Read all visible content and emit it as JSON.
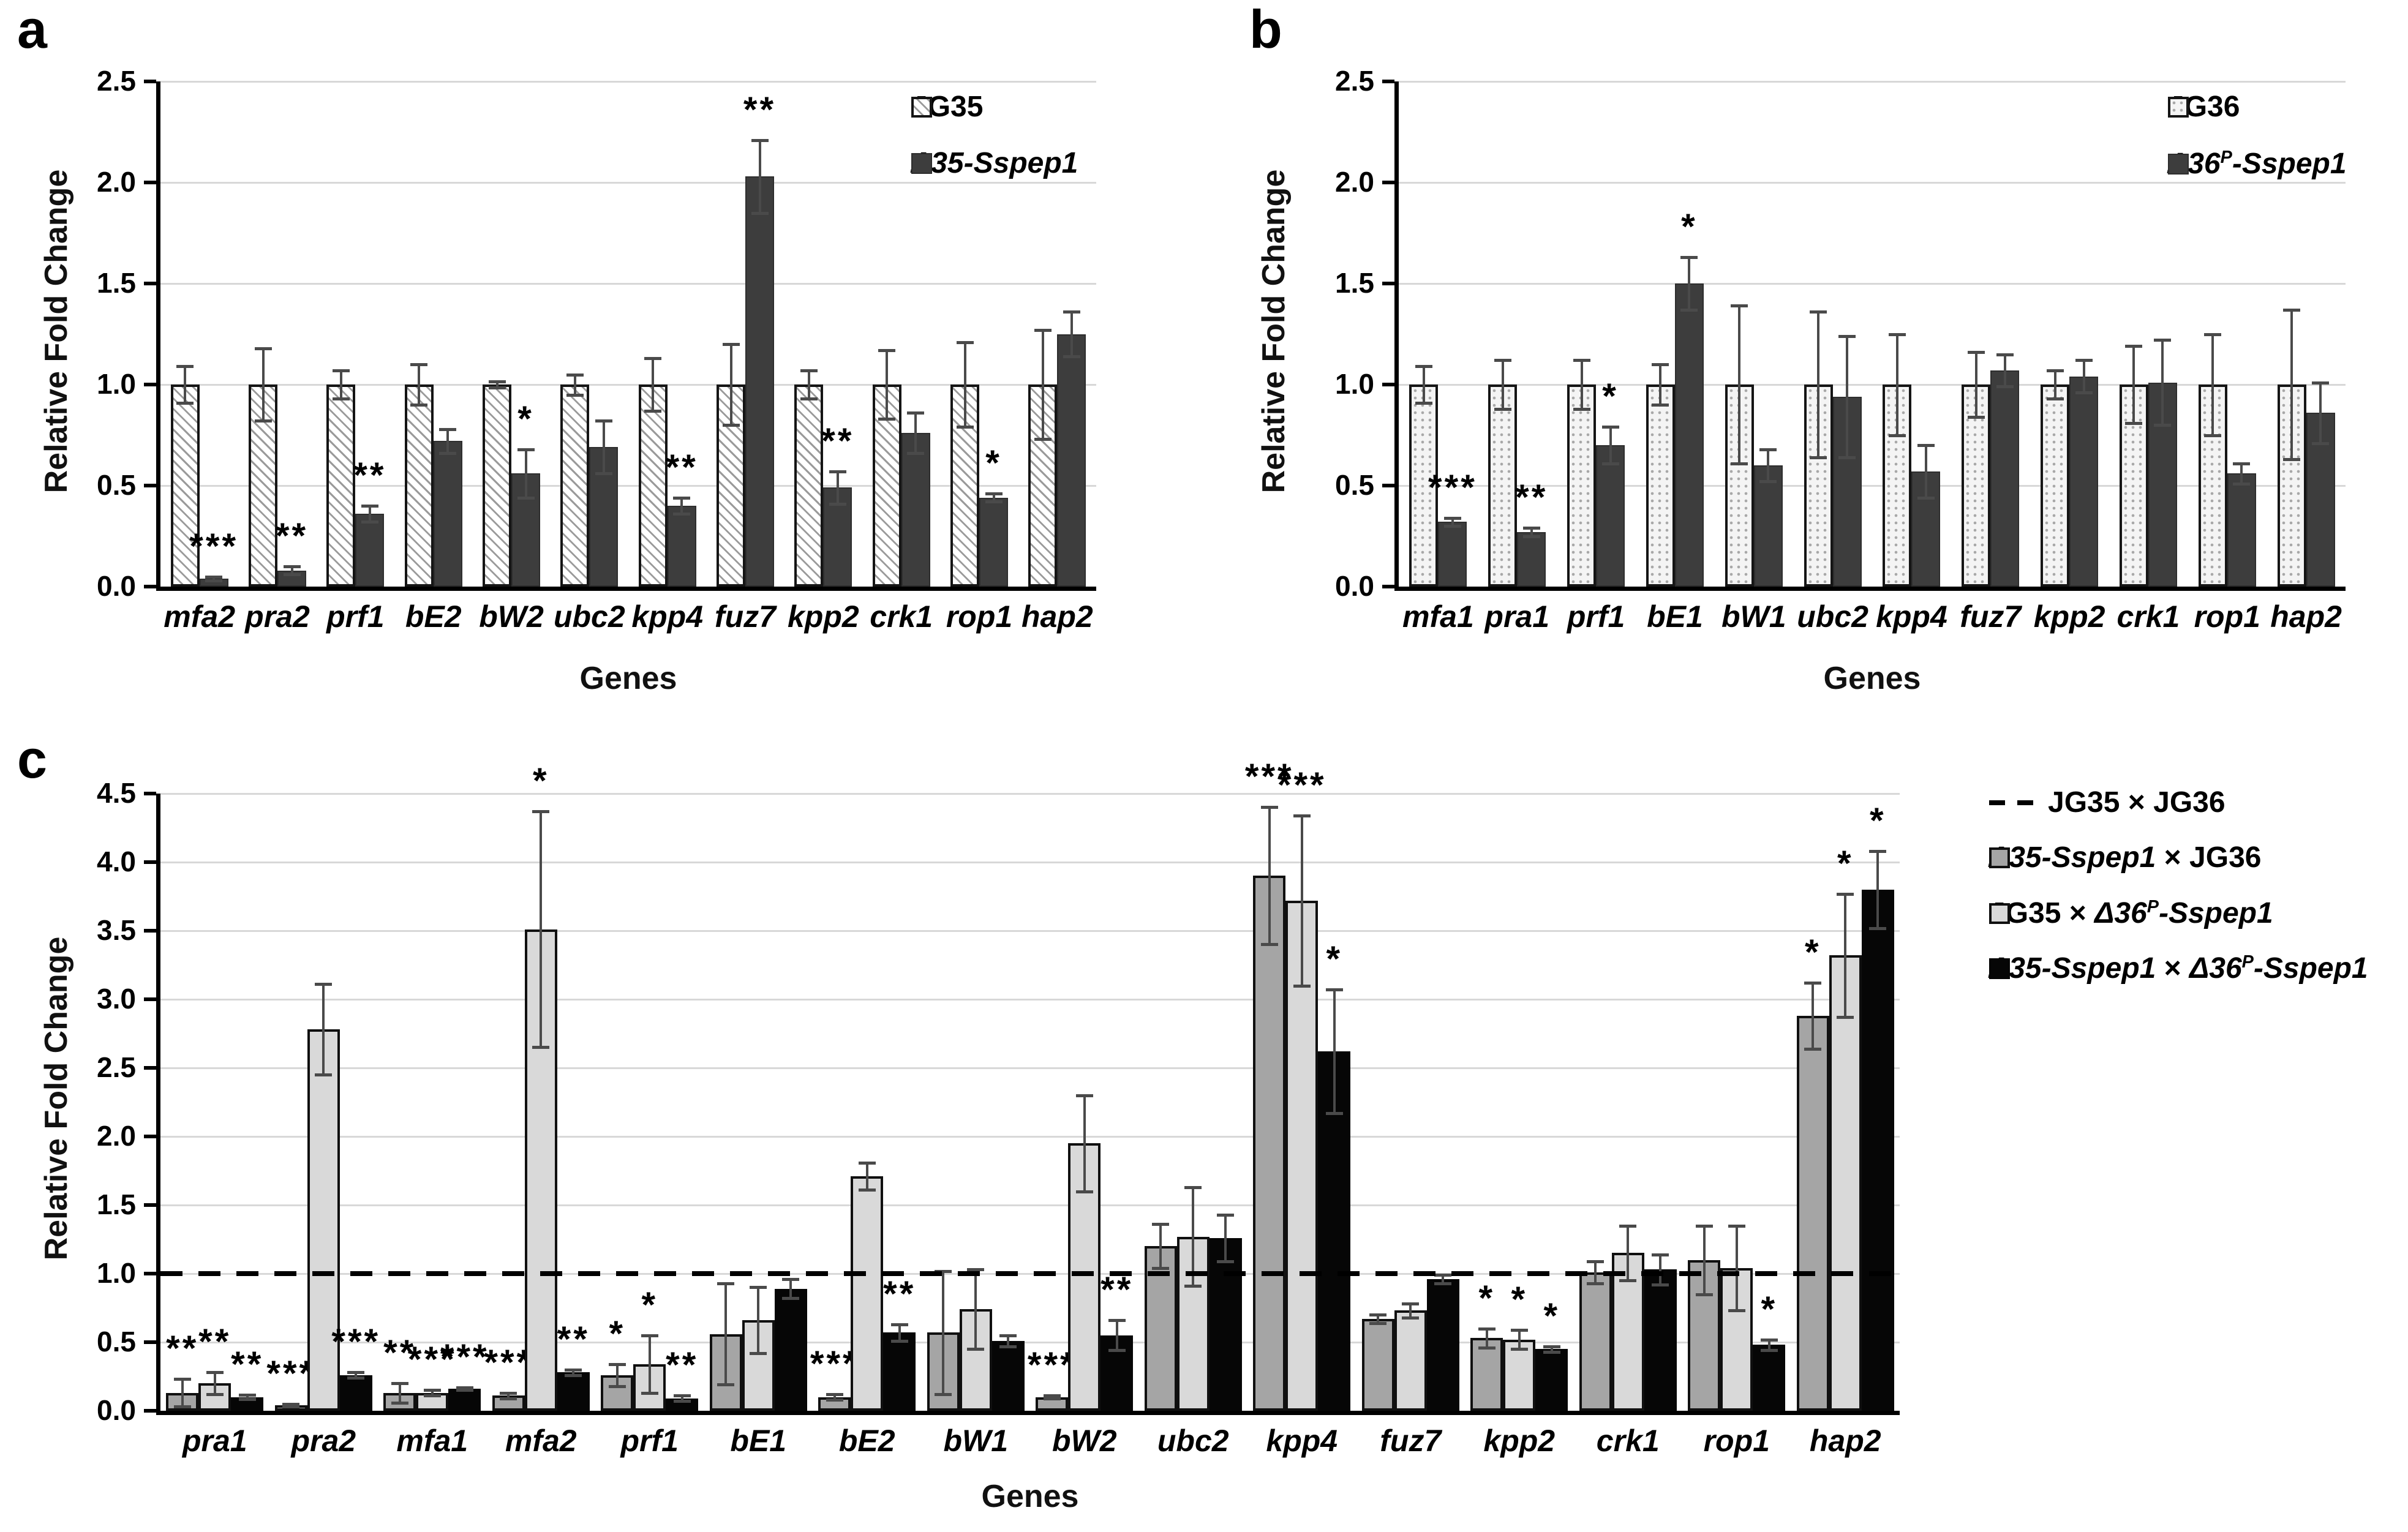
{
  "figure": {
    "background": "#ffffff",
    "colors": {
      "hatch_series_fill": "#ffffff",
      "hatch_series_line": "#9b9b9b",
      "dots_series_fill": "#f4f4f4",
      "dark_series": "#3d3d3d",
      "cross_gray_series": "#a5a5a5",
      "cross_light_series": "#d9d9d9",
      "cross_black_series": "#060606",
      "gridline": "#d8d8d8",
      "error_bar": "#4a4a4a",
      "baseline_dash": "#000000"
    }
  },
  "chart_data": [
    {
      "id": "a",
      "panel_label": "a",
      "type": "bar",
      "title": "",
      "ylabel": "Relative Fold Change",
      "xlabel": "Genes",
      "ylim": [
        0,
        2.5
      ],
      "yticks": [
        "0.0",
        "0.5",
        "1.0",
        "1.5",
        "2.0",
        "2.5"
      ],
      "grid": "horizontal",
      "legend_position": "top-right-inside",
      "categories": [
        "mfa2",
        "pra2",
        "prf1",
        "bE2",
        "bW2",
        "ubc2",
        "kpp4",
        "fuz7",
        "kpp2",
        "crk1",
        "rop1",
        "hap2"
      ],
      "series": [
        {
          "name": "JG35",
          "swatch": "hatch",
          "values": [
            1.0,
            1.0,
            1.0,
            1.0,
            1.0,
            1.0,
            1.0,
            1.0,
            1.0,
            1.0,
            1.0,
            1.0
          ],
          "errors": [
            0.09,
            0.18,
            0.07,
            0.1,
            0.015,
            0.05,
            0.13,
            0.2,
            0.07,
            0.17,
            0.21,
            0.27
          ],
          "sig": [
            "",
            "",
            "",
            "",
            "",
            "",
            "",
            "",
            "",
            "",
            "",
            ""
          ]
        },
        {
          "name": "Δ35-Sspep1",
          "swatch": "darkgray",
          "values": [
            0.04,
            0.08,
            0.36,
            0.72,
            0.56,
            0.69,
            0.4,
            2.03,
            0.49,
            0.76,
            0.44,
            1.25
          ],
          "errors": [
            0.01,
            0.02,
            0.04,
            0.06,
            0.12,
            0.13,
            0.04,
            0.18,
            0.08,
            0.1,
            0.02,
            0.11
          ],
          "sig": [
            "***",
            "**",
            "**",
            "",
            "*",
            "",
            "**",
            "**",
            "**",
            "",
            "*",
            ""
          ]
        }
      ]
    },
    {
      "id": "b",
      "panel_label": "b",
      "type": "bar",
      "title": "",
      "ylabel": "Relative Fold Change",
      "xlabel": "Genes",
      "ylim": [
        0,
        2.5
      ],
      "yticks": [
        "0.0",
        "0.5",
        "1.0",
        "1.5",
        "2.0",
        "2.5"
      ],
      "grid": "horizontal",
      "legend_position": "top-right-inside",
      "categories": [
        "mfa1",
        "pra1",
        "prf1",
        "bE1",
        "bW1",
        "ubc2",
        "kpp4",
        "fuz7",
        "kpp2",
        "crk1",
        "rop1",
        "hap2"
      ],
      "series": [
        {
          "name": "JG36",
          "swatch": "dots",
          "values": [
            1.0,
            1.0,
            1.0,
            1.0,
            1.0,
            1.0,
            1.0,
            1.0,
            1.0,
            1.0,
            1.0,
            1.0
          ],
          "errors": [
            0.09,
            0.12,
            0.12,
            0.1,
            0.39,
            0.36,
            0.25,
            0.16,
            0.07,
            0.19,
            0.25,
            0.37
          ],
          "sig": [
            "",
            "",
            "",
            "",
            "",
            "",
            "",
            "",
            "",
            "",
            "",
            ""
          ]
        },
        {
          "name": "Δ36^P-Sspep1",
          "swatch": "darkgray",
          "values": [
            0.32,
            0.27,
            0.7,
            1.5,
            0.6,
            0.94,
            0.57,
            1.07,
            1.04,
            1.01,
            0.56,
            0.86
          ],
          "errors": [
            0.02,
            0.02,
            0.09,
            0.13,
            0.08,
            0.3,
            0.13,
            0.08,
            0.08,
            0.21,
            0.05,
            0.15
          ],
          "sig": [
            "***",
            "**",
            "*",
            "*",
            "",
            "",
            "",
            "",
            "",
            "",
            "",
            ""
          ]
        }
      ]
    },
    {
      "id": "c",
      "panel_label": "c",
      "type": "bar",
      "title": "",
      "ylabel": "Relative Fold Change",
      "xlabel": "Genes",
      "ylim": [
        0,
        4.5
      ],
      "yticks": [
        "0.0",
        "0.5",
        "1.0",
        "1.5",
        "2.0",
        "2.5",
        "3.0",
        "3.5",
        "4.0",
        "4.5"
      ],
      "grid": "horizontal",
      "legend_position": "right-outside",
      "baseline": {
        "value": 1.0,
        "name": "JG35 × JG36",
        "swatch": "dashed"
      },
      "categories": [
        "pra1",
        "pra2",
        "mfa1",
        "mfa2",
        "prf1",
        "bE1",
        "bE2",
        "bW1",
        "bW2",
        "ubc2",
        "kpp4",
        "fuz7",
        "kpp2",
        "crk1",
        "rop1",
        "hap2"
      ],
      "series": [
        {
          "name": "Δ35-Sspep1 × JG36",
          "swatch": "gray",
          "values": [
            0.13,
            0.04,
            0.13,
            0.11,
            0.26,
            0.56,
            0.1,
            0.57,
            0.1,
            1.2,
            3.9,
            0.67,
            0.53,
            1.01,
            1.1,
            2.88
          ],
          "errors": [
            0.1,
            0.01,
            0.07,
            0.02,
            0.08,
            0.37,
            0.02,
            0.45,
            0.01,
            0.16,
            0.5,
            0.03,
            0.07,
            0.08,
            0.25,
            0.24
          ],
          "sig": [
            "**",
            "***",
            "**",
            "***",
            "*",
            "",
            "***",
            "",
            "***",
            "",
            "***",
            "",
            "*",
            "",
            "",
            "*"
          ]
        },
        {
          "name": "JG35 × Δ36^P-Sspep1",
          "swatch": "light",
          "values": [
            0.2,
            2.78,
            0.13,
            3.51,
            0.34,
            0.66,
            1.71,
            0.74,
            1.95,
            1.27,
            3.72,
            0.73,
            0.52,
            1.15,
            1.04,
            3.32
          ],
          "errors": [
            0.08,
            0.33,
            0.02,
            0.86,
            0.21,
            0.24,
            0.1,
            0.29,
            0.35,
            0.36,
            0.62,
            0.05,
            0.07,
            0.2,
            0.31,
            0.45
          ],
          "sig": [
            "**",
            "",
            "***",
            "*",
            "*",
            "",
            "",
            "",
            "",
            "",
            "***",
            "",
            "*",
            "",
            "",
            "*"
          ]
        },
        {
          "name": "Δ35-Sspep1 × Δ36^P-Sspep1",
          "swatch": "black",
          "values": [
            0.1,
            0.26,
            0.16,
            0.28,
            0.09,
            0.89,
            0.57,
            0.51,
            0.55,
            1.26,
            2.62,
            0.96,
            0.45,
            1.03,
            0.48,
            3.8
          ],
          "errors": [
            0.015,
            0.02,
            0.01,
            0.02,
            0.02,
            0.07,
            0.06,
            0.04,
            0.11,
            0.17,
            0.45,
            0.03,
            0.02,
            0.11,
            0.04,
            0.28
          ],
          "sig": [
            "**",
            "***",
            "***",
            "**",
            "**",
            "",
            "**",
            "",
            "**",
            "",
            "*",
            "",
            "*",
            "",
            "*",
            "*"
          ]
        }
      ]
    }
  ]
}
